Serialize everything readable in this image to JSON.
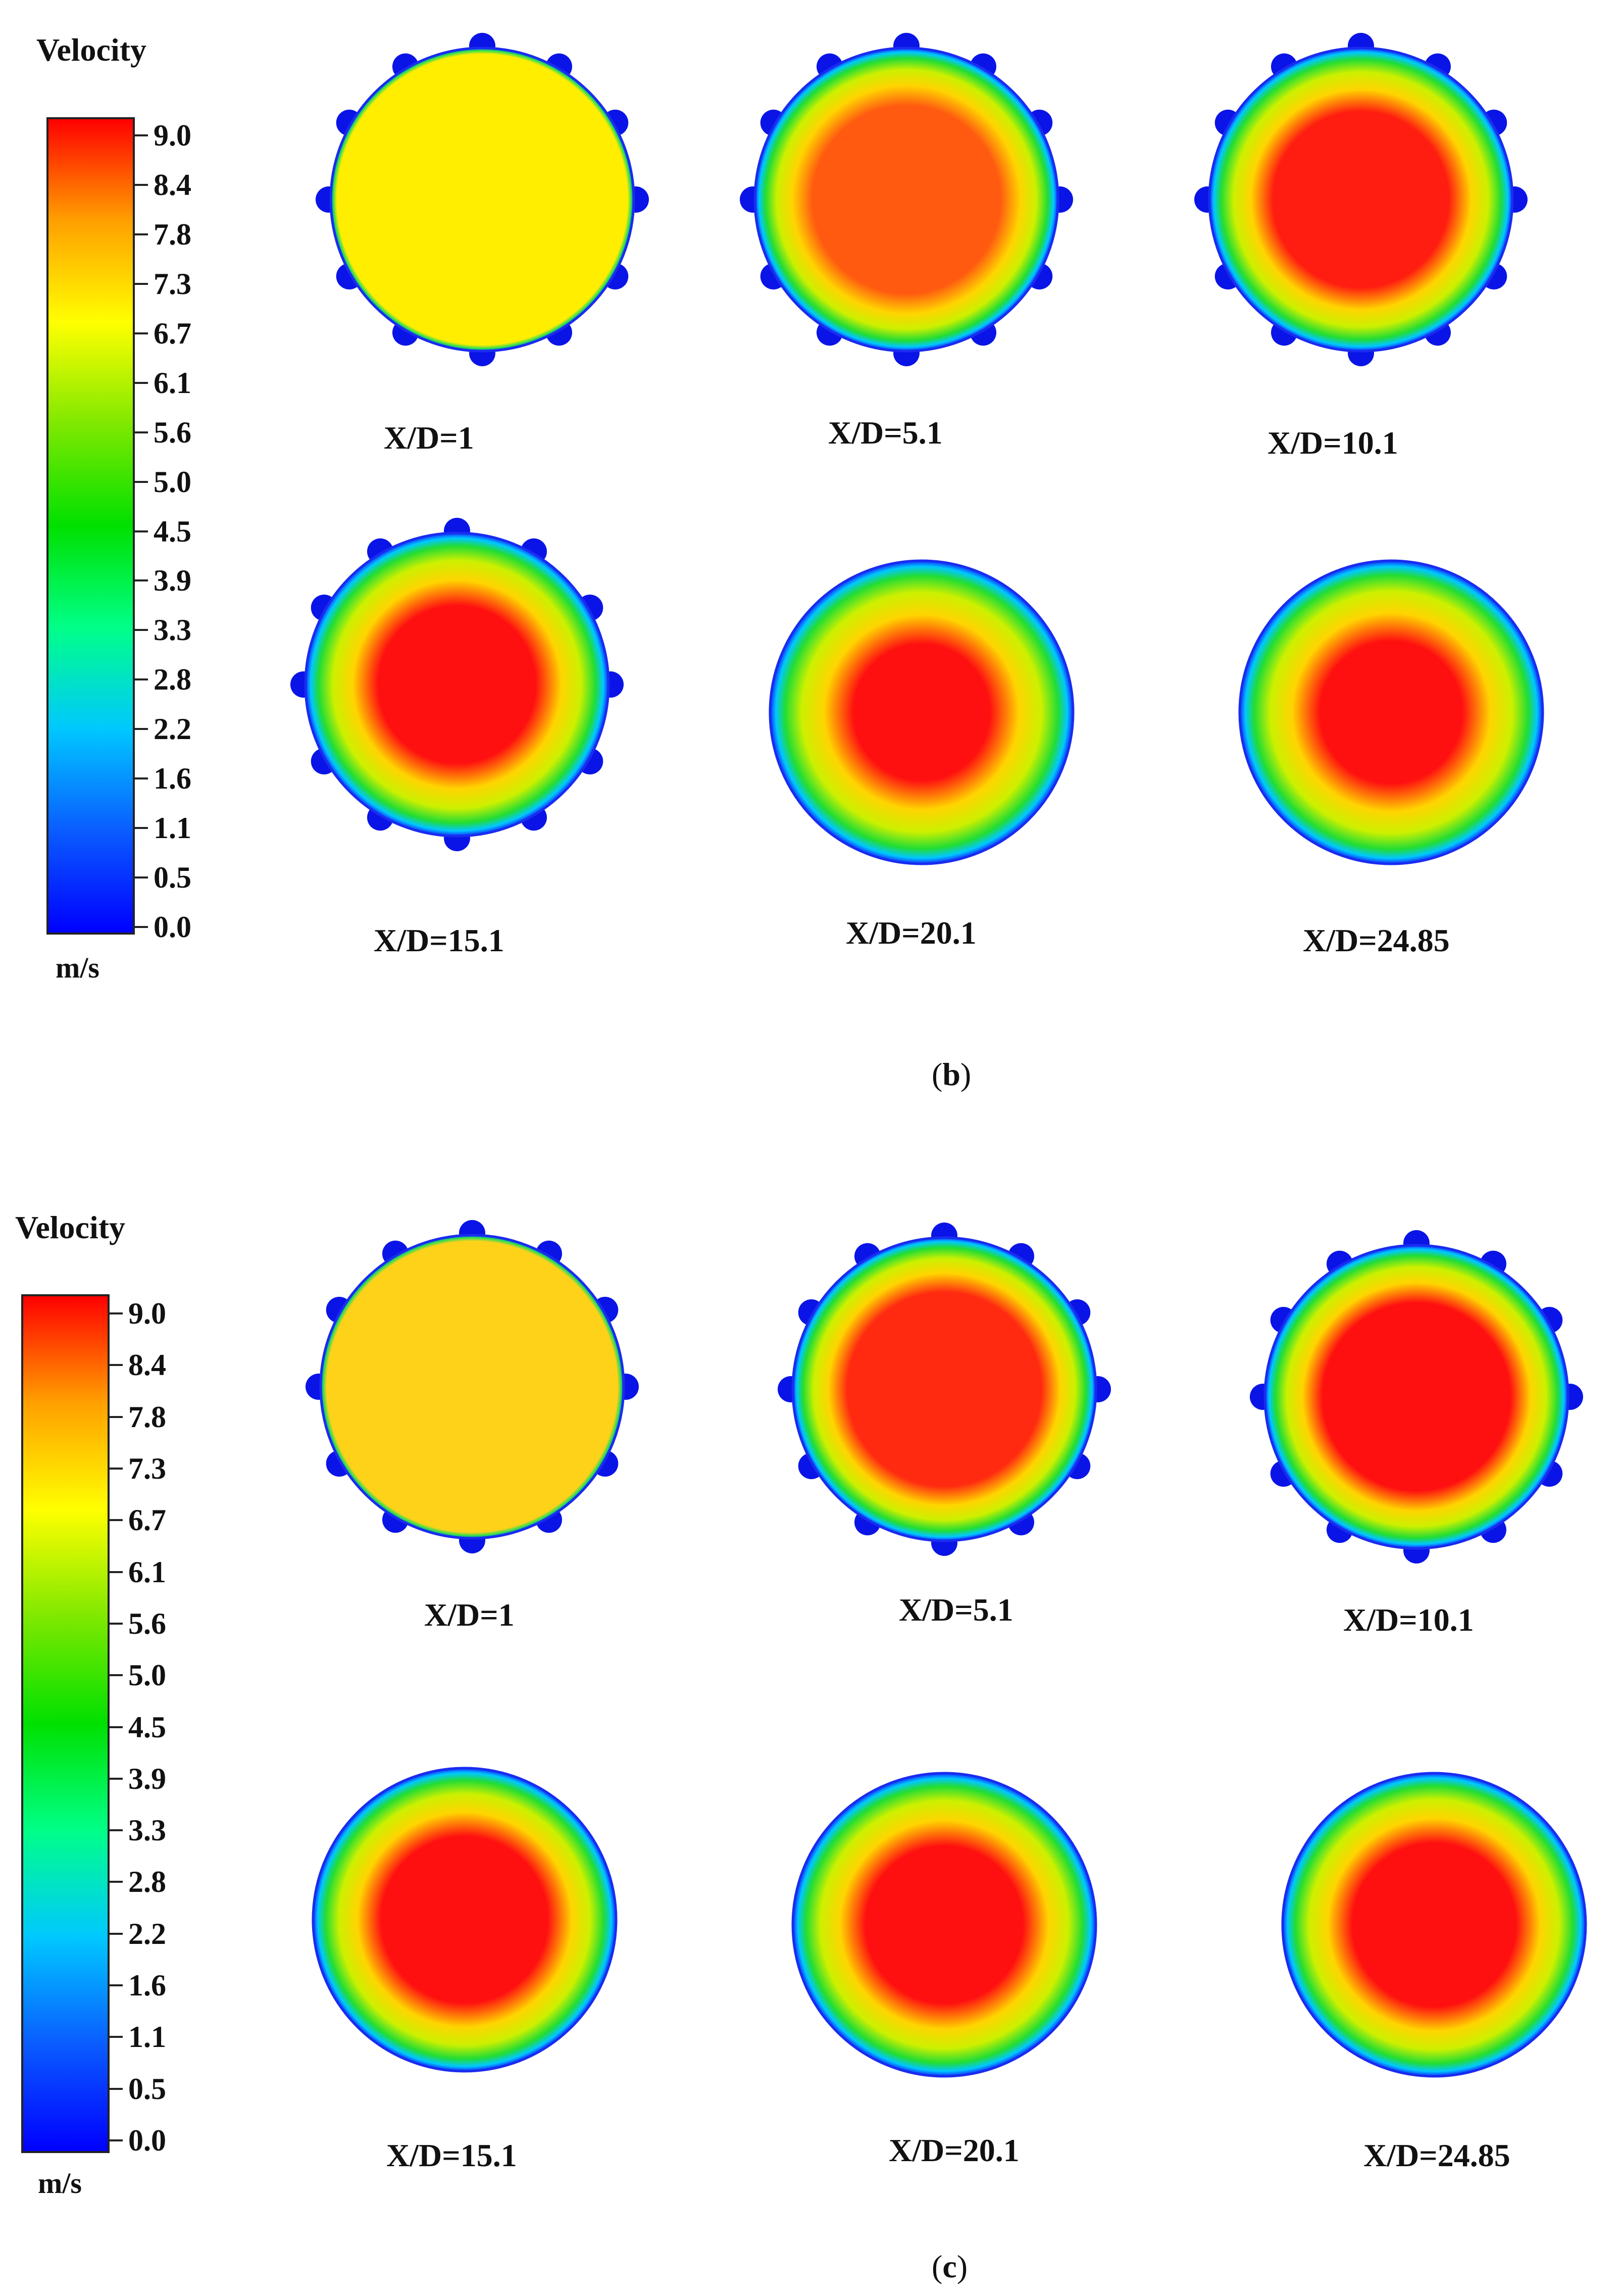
{
  "legend": {
    "title": "Velocity",
    "unit": "m/s",
    "ticks": [
      "9.0",
      "8.4",
      "7.8",
      "7.3",
      "6.7",
      "6.1",
      "5.6",
      "5.0",
      "4.5",
      "3.9",
      "3.3",
      "2.8",
      "2.2",
      "1.6",
      "1.1",
      "0.5",
      "0.0"
    ],
    "colormap": [
      "#0000ff",
      "#0a5cff",
      "#00c8ff",
      "#00ff88",
      "#00e000",
      "#7fe800",
      "#ffff00",
      "#ffa000",
      "#ff0000"
    ]
  },
  "panels": [
    {
      "caption_letter": "b",
      "sections": [
        {
          "label": "X/D=1",
          "core_color": "#ffee00",
          "core_fraction": 0.96,
          "fins": true
        },
        {
          "label": "X/D=5.1",
          "core_color": "#ff5a10",
          "core_fraction": 0.62,
          "fins": true
        },
        {
          "label": "X/D=10.1",
          "core_color": "#ff1c10",
          "core_fraction": 0.58,
          "fins": true
        },
        {
          "label": "X/D=15.1",
          "core_color": "#ff1010",
          "core_fraction": 0.52,
          "fins": true
        },
        {
          "label": "X/D=20.1",
          "core_color": "#ff1010",
          "core_fraction": 0.45,
          "fins": false
        },
        {
          "label": "X/D=24.85",
          "core_color": "#ff1010",
          "core_fraction": 0.47,
          "fins": false
        }
      ]
    },
    {
      "caption_letter": "c",
      "sections": [
        {
          "label": "X/D=1",
          "core_color": "#ffd21a",
          "core_fraction": 0.96,
          "fins": true
        },
        {
          "label": "X/D=5.1",
          "core_color": "#ff2a10",
          "core_fraction": 0.64,
          "fins": true
        },
        {
          "label": "X/D=10.1",
          "core_color": "#ff1010",
          "core_fraction": 0.62,
          "fins": true
        },
        {
          "label": "X/D=15.1",
          "core_color": "#ff1010",
          "core_fraction": 0.55,
          "fins": false
        },
        {
          "label": "X/D=20.1",
          "core_color": "#ff1010",
          "core_fraction": 0.52,
          "fins": false
        },
        {
          "label": "X/D=24.85",
          "core_color": "#ff1010",
          "core_fraction": 0.54,
          "fins": false
        }
      ]
    }
  ]
}
